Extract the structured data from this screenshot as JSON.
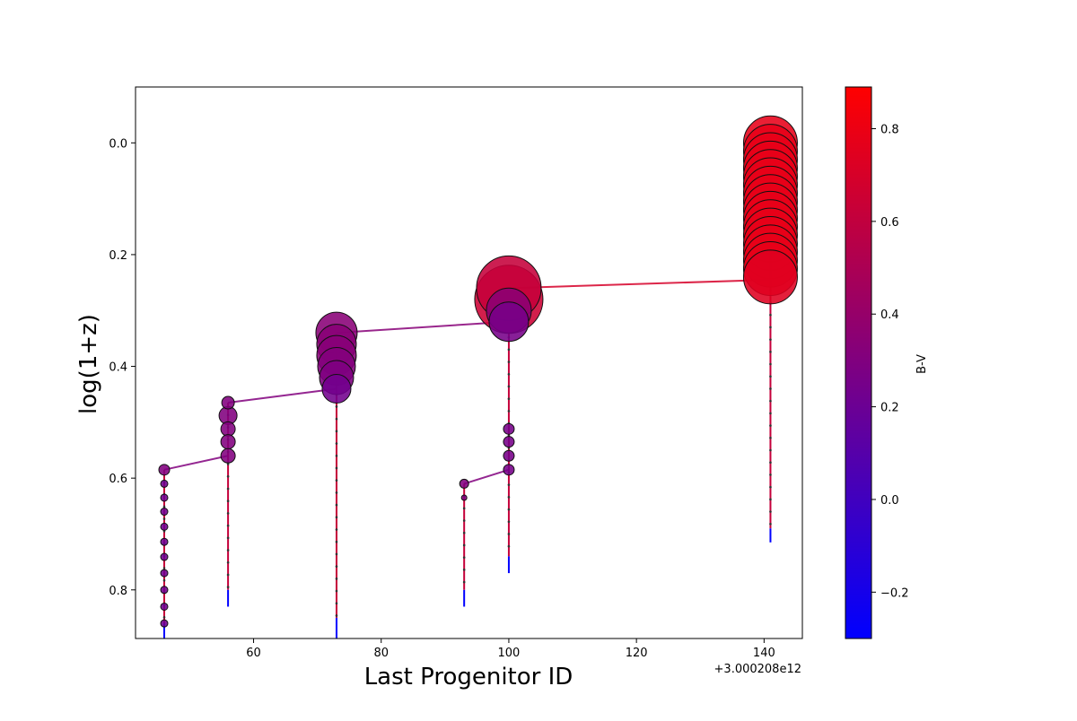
{
  "chart_data": {
    "type": "scatter",
    "xlabel": "Last Progenitor ID",
    "ylabel": "log(1+z)",
    "x_offset_label": "+3.000208e12",
    "xlim": [
      41.5,
      146
    ],
    "ylim": [
      0.887,
      -0.1
    ],
    "y_inverted": true,
    "x_ticks": [
      60,
      80,
      100,
      120,
      140
    ],
    "y_ticks": [
      0.0,
      0.2,
      0.4,
      0.6,
      0.8
    ],
    "y_tick_labels": [
      "0.0",
      "0.2",
      "0.4",
      "0.6",
      "0.8"
    ],
    "grid": false,
    "colorbar": {
      "label": "B-V",
      "min": -0.3,
      "max": 0.89,
      "ticks": [
        -0.2,
        0.0,
        0.2,
        0.4,
        0.6,
        0.8
      ],
      "tick_labels": [
        "−0.2",
        "0.0",
        "0.2",
        "0.4",
        "0.6",
        "0.8"
      ],
      "colors": [
        "#0000ff",
        "#ff0000"
      ]
    },
    "branches": [
      {
        "x": 46,
        "y_top": 0.585,
        "y_bottom": 0.887,
        "y_mid": 0.86,
        "points": [
          [
            0.585,
            0.3
          ],
          [
            0.61,
            0.22
          ],
          [
            0.635,
            0.22
          ],
          [
            0.66,
            0.22
          ],
          [
            0.687,
            0.22
          ],
          [
            0.714,
            0.22
          ],
          [
            0.741,
            0.22
          ],
          [
            0.77,
            0.22
          ],
          [
            0.8,
            0.22
          ],
          [
            0.83,
            0.22
          ],
          [
            0.86,
            0.22
          ]
        ]
      },
      {
        "x": 56,
        "y_top": 0.465,
        "y_bottom": 0.83,
        "y_mid": 0.8,
        "points": [
          [
            0.465,
            0.3
          ],
          [
            0.488,
            0.3
          ],
          [
            0.512,
            0.3
          ],
          [
            0.535,
            0.3
          ],
          [
            0.56,
            0.3
          ]
        ]
      },
      {
        "x": 73,
        "y_top": 0.34,
        "y_bottom": 0.887,
        "y_mid": 0.85,
        "points": [
          [
            0.34,
            0.34
          ],
          [
            0.36,
            0.34
          ],
          [
            0.38,
            0.33
          ],
          [
            0.4,
            0.31
          ],
          [
            0.42,
            0.29
          ],
          [
            0.44,
            0.23
          ]
        ]
      },
      {
        "x": 93,
        "y_top": 0.61,
        "y_bottom": 0.83,
        "y_mid": 0.8,
        "points": [
          [
            0.61,
            0.3
          ],
          [
            0.635,
            0.3
          ]
        ]
      },
      {
        "x": 100,
        "y_top": 0.26,
        "y_bottom": 0.77,
        "y_mid": 0.74,
        "points": [
          [
            0.26,
            0.62
          ],
          [
            0.28,
            0.65
          ],
          [
            0.3,
            0.35
          ],
          [
            0.32,
            0.25
          ],
          [
            0.512,
            0.25
          ],
          [
            0.535,
            0.25
          ],
          [
            0.56,
            0.25
          ],
          [
            0.585,
            0.25
          ]
        ]
      },
      {
        "x": 141,
        "y_top": 0.0,
        "y_bottom": 0.715,
        "y_mid": 0.69,
        "points": [
          [
            0.0,
            0.78
          ],
          [
            0.015,
            0.78
          ],
          [
            0.03,
            0.78
          ],
          [
            0.045,
            0.78
          ],
          [
            0.06,
            0.78
          ],
          [
            0.075,
            0.78
          ],
          [
            0.09,
            0.78
          ],
          [
            0.105,
            0.78
          ],
          [
            0.12,
            0.78
          ],
          [
            0.135,
            0.78
          ],
          [
            0.15,
            0.78
          ],
          [
            0.165,
            0.78
          ],
          [
            0.18,
            0.78
          ],
          [
            0.195,
            0.78
          ],
          [
            0.21,
            0.78
          ],
          [
            0.225,
            0.78
          ],
          [
            0.24,
            0.74
          ]
        ]
      }
    ],
    "merger_lines": [
      {
        "from": [
          46,
          0.585
        ],
        "to": [
          56,
          0.56
        ],
        "color": 0.3
      },
      {
        "from": [
          56,
          0.465
        ],
        "to": [
          73,
          0.44
        ],
        "color": 0.3
      },
      {
        "from": [
          73,
          0.34
        ],
        "to": [
          100,
          0.32
        ],
        "color": 0.33
      },
      {
        "from": [
          93,
          0.61
        ],
        "to": [
          100,
          0.585
        ],
        "color": 0.3
      },
      {
        "from": [
          100,
          0.26
        ],
        "to": [
          141,
          0.245
        ],
        "color": 0.7
      }
    ]
  }
}
